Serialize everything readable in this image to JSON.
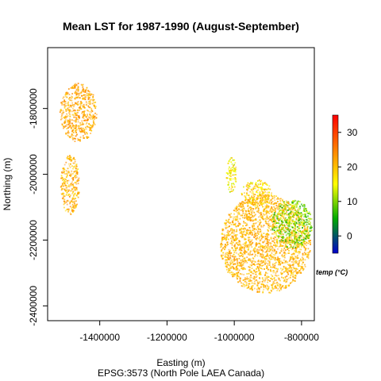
{
  "chart_data": {
    "type": "heatmap",
    "title": "Mean LST for 1987-1990 (August-September)",
    "xlabel": "Easting (m)",
    "ylabel": "Northing (m)",
    "caption": "EPSG:3573 (North Pole LAEA Canada)",
    "xlim": [
      -1555000,
      -762000
    ],
    "ylim": [
      -2445000,
      -1615000
    ],
    "x_ticks": [
      -1400000,
      -1200000,
      -1000000,
      -800000
    ],
    "y_ticks": [
      -1800000,
      -2000000,
      -2200000,
      -2400000
    ],
    "colorbar": {
      "title": "temp (°C)",
      "range": [
        -5,
        35
      ],
      "ticks": [
        0,
        10,
        20,
        30
      ],
      "colors": [
        "#0000cc",
        "#00aa00",
        "#ffff00",
        "#ff8000",
        "#ff0000"
      ]
    },
    "regions": [
      {
        "x": -1465000,
        "y": -1810000,
        "rx": 55000,
        "ry": 90000,
        "temp": 22,
        "spread": 3
      },
      {
        "x": -1490000,
        "y": -2030000,
        "rx": 28000,
        "ry": 90000,
        "temp": 21,
        "spread": 4
      },
      {
        "x": -1010000,
        "y": -2000000,
        "rx": 15000,
        "ry": 55000,
        "temp": 16,
        "spread": 5
      },
      {
        "x": -935000,
        "y": -2055000,
        "rx": 45000,
        "ry": 40000,
        "temp": 18,
        "spread": 5
      },
      {
        "x": -910000,
        "y": -2210000,
        "rx": 135000,
        "ry": 150000,
        "temp": 21,
        "spread": 3
      },
      {
        "x": -830000,
        "y": -2150000,
        "rx": 60000,
        "ry": 75000,
        "temp": 10,
        "spread": 5
      }
    ]
  }
}
